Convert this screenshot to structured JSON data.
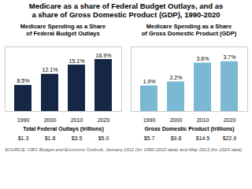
{
  "title": "Medicare as a share of Federal Budget Outlays, and as\na share of Gross Domestic Product (GDP), 1990-2020",
  "annotations": [
    {
      "text": "SOURCE: CBO Budget and Economic Outlook, January 2011 (for 1990-2010 data) and May 2013 (for 2020 data)."
    }
  ],
  "chart_data": [
    {
      "type": "bar",
      "subtitle": "Medicare Spending as a Share\nof Federal Budget Outlays",
      "categories": [
        "1990",
        "2000",
        "2010",
        "2020"
      ],
      "values": [
        8.5,
        12.1,
        15.1,
        16.9
      ],
      "value_labels": [
        "8.5%",
        "12.1%",
        "15.1%",
        "16.9%"
      ],
      "data_labels": true,
      "color": "#152744",
      "ylim": [
        0,
        21
      ],
      "tick_labels": "x",
      "grid": false,
      "annotations": [
        {
          "text": "Total Federal Outlays (trillions)"
        },
        {
          "text": "$1.3",
          "x": "1990"
        },
        {
          "text": "$1.8",
          "x": "2000"
        },
        {
          "text": "$3.5",
          "x": "2010"
        },
        {
          "text": "$5.0",
          "x": "2020"
        }
      ]
    },
    {
      "type": "bar",
      "subtitle": "Medicare Spending as a Share\nof Gross Domestic Product (GDP)",
      "categories": [
        "1990",
        "2000",
        "2010",
        "2020"
      ],
      "values": [
        1.9,
        2.2,
        3.6,
        3.7
      ],
      "value_labels": [
        "1.9%",
        "2.2%",
        "3.6%",
        "3.7%"
      ],
      "data_labels": true,
      "color": "#7ab8d4",
      "ylim": [
        0,
        4.8
      ],
      "tick_labels": "x",
      "grid": false,
      "annotations": [
        {
          "text": "Gross Domestic Product (trillions)"
        },
        {
          "text": "$5.7",
          "x": "1990"
        },
        {
          "text": "$9.8",
          "x": "2000"
        },
        {
          "text": "$14.5",
          "x": "2010"
        },
        {
          "text": "$22.9",
          "x": "2020"
        }
      ]
    }
  ]
}
